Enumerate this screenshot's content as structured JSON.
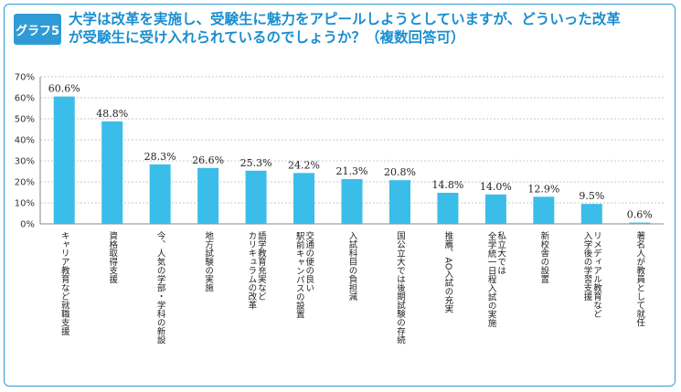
{
  "badge": "グラフ5",
  "title": {
    "line1": "大学は改革を実施し、受験生に魅力をアピールしようとしていますが、どういった改革",
    "line2": "が受験生に受け入れられているのでしょうか？（複数回答可）"
  },
  "chart_data": {
    "type": "bar",
    "categories": [
      "キャリア教育など就職支援",
      "資格取得支援",
      "今、人気の学部・学科の新設",
      "地方試験の実施",
      "語学教育充実など カリキュラムの改革",
      "交通の便の良い 駅前キャンパスの設置",
      "入試科目の負担減",
      "国公立大では後期試験の存続",
      "推薦、AO入試の充実",
      "私立大では 全学統一日程入試の実施",
      "新校舎の設置",
      "リメディアル教育など 入学後の学習支援",
      "著名人が教員として就任"
    ],
    "values": [
      60.6,
      48.8,
      28.3,
      26.6,
      25.3,
      24.2,
      21.3,
      20.8,
      14.8,
      14.0,
      12.9,
      9.5,
      0.6
    ],
    "value_labels": [
      "60.6%",
      "48.8%",
      "28.3%",
      "26.6%",
      "25.3%",
      "24.2%",
      "21.3%",
      "20.8%",
      "14.8%",
      "14.0%",
      "12.9%",
      "9.5%",
      "0.6%"
    ],
    "ylim": [
      0,
      70
    ],
    "yticks": [
      "0%",
      "10%",
      "20%",
      "30%",
      "40%",
      "50%",
      "60%",
      "70%"
    ],
    "grid": true,
    "bar_color": "#3bbde9"
  }
}
